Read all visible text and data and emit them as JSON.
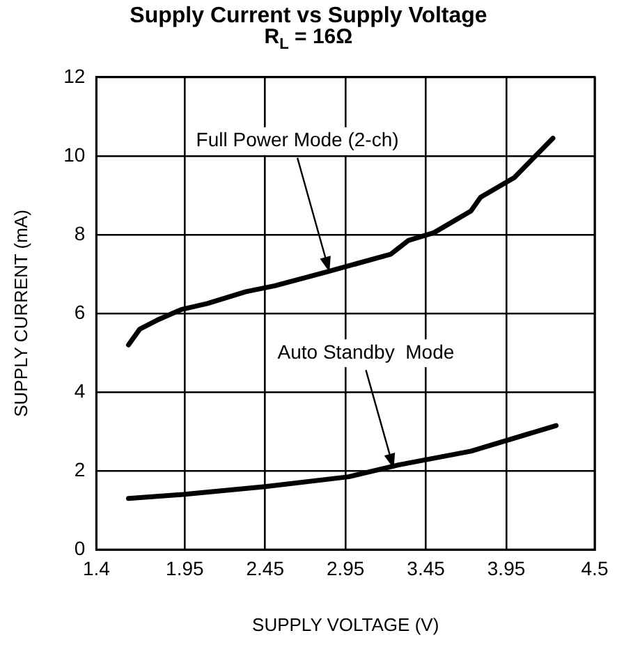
{
  "chart_data": {
    "type": "line",
    "title": "Supply Current vs Supply Voltage",
    "subtitle": "R$_{L}$ = 16Ω",
    "xlabel": "SUPPLY VOLTAGE (V)",
    "ylabel": "SUPPLY CURRENT (mA)",
    "xlim": [
      1.4,
      4.5
    ],
    "xticks": [
      1.4,
      1.95,
      2.45,
      2.95,
      3.45,
      3.95,
      4.5
    ],
    "ylim": [
      0,
      12
    ],
    "yticks": [
      0,
      2,
      4,
      6,
      8,
      10,
      12
    ],
    "grid": true,
    "legend": false,
    "marker": "none",
    "line_style": "solid",
    "series": [
      {
        "color": "#000000",
        "x": [
          1.6,
          1.67,
          1.79,
          1.93,
          2.09,
          2.33,
          2.51,
          2.83,
          3.23,
          3.34,
          3.5,
          3.73,
          3.79,
          4.0,
          4.24
        ],
        "values": [
          5.2,
          5.6,
          5.85,
          6.1,
          6.25,
          6.55,
          6.7,
          7.05,
          7.5,
          7.85,
          8.05,
          8.6,
          8.95,
          9.45,
          10.45
        ]
      },
      {
        "color": "#000000",
        "x": [
          1.6,
          1.94,
          2.45,
          2.97,
          3.28,
          3.73,
          4.26
        ],
        "values": [
          1.3,
          1.4,
          1.6,
          1.85,
          2.15,
          2.5,
          3.15
        ]
      }
    ],
    "annotations": [
      {
        "text": "Full Power Mode (2-ch)",
        "x": 2.85,
        "y": 7.05
      },
      {
        "text": "Auto Standby  Mode",
        "x": 3.25,
        "y": 2.05
      }
    ]
  }
}
